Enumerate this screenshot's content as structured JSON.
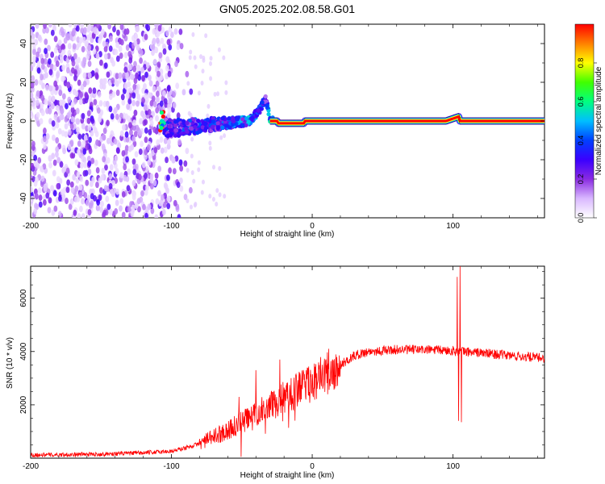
{
  "title": "GN05.2025.202.08.58.G01",
  "chart_data": [
    {
      "type": "heatmap",
      "name": "spectrogram",
      "xlabel": "Height of straight line (km)",
      "ylabel": "Frequency (Hz)",
      "xlim": [
        -200,
        165
      ],
      "ylim": [
        -50,
        50
      ],
      "xticks": [
        -200,
        -100,
        0,
        100
      ],
      "yticks": [
        -40,
        -20,
        0,
        20,
        40
      ],
      "colorbar": {
        "label": "Normalized spectral amplitude",
        "range": [
          0,
          1
        ],
        "ticks": [
          0.0,
          0.2,
          0.4,
          0.6,
          0.8
        ],
        "colormap": [
          "#ffffff",
          "#d9b8ff",
          "#8a2be2",
          "#3a00ff",
          "#0040ff",
          "#00bfff",
          "#00ff80",
          "#40ff00",
          "#ffff00",
          "#ff8000",
          "#ff0000"
        ]
      },
      "ridge": {
        "description_values": [
          {
            "x": -105,
            "y": -4,
            "amp": 0.35
          },
          {
            "x": -90,
            "y": -3,
            "amp": 0.4
          },
          {
            "x": -75,
            "y": -2,
            "amp": 0.4
          },
          {
            "x": -60,
            "y": -1,
            "amp": 0.45
          },
          {
            "x": -45,
            "y": 0,
            "amp": 0.5
          },
          {
            "x": -38,
            "y": 5,
            "amp": 0.45
          },
          {
            "x": -33,
            "y": 12,
            "amp": 0.3
          },
          {
            "x": -30,
            "y": 1,
            "amp": 0.75
          },
          {
            "x": -20,
            "y": 0,
            "amp": 0.9
          },
          {
            "x": -10,
            "y": -1,
            "amp": 0.95
          },
          {
            "x": 0,
            "y": 0,
            "amp": 1.0
          },
          {
            "x": 50,
            "y": 0,
            "amp": 1.0
          },
          {
            "x": 100,
            "y": 0,
            "amp": 1.0
          },
          {
            "x": 165,
            "y": 0,
            "amp": 1.0
          }
        ]
      }
    },
    {
      "type": "line",
      "name": "snr",
      "xlabel": "Height of straight line (km)",
      "ylabel": "SNR (10 * v/v)",
      "xlim": [
        -200,
        165
      ],
      "ylim": [
        0,
        7200
      ],
      "xticks": [
        -200,
        -100,
        0,
        100
      ],
      "yticks": [
        2000,
        4000,
        6000
      ],
      "color": "#ff0000",
      "envelope": [
        {
          "x": -200,
          "y": 120
        },
        {
          "x": -150,
          "y": 150
        },
        {
          "x": -120,
          "y": 200
        },
        {
          "x": -100,
          "y": 260
        },
        {
          "x": -90,
          "y": 380
        },
        {
          "x": -80,
          "y": 550
        },
        {
          "x": -70,
          "y": 800
        },
        {
          "x": -60,
          "y": 1050
        },
        {
          "x": -50,
          "y": 1350
        },
        {
          "x": -40,
          "y": 1650
        },
        {
          "x": -30,
          "y": 1950
        },
        {
          "x": -20,
          "y": 2250
        },
        {
          "x": -10,
          "y": 2550
        },
        {
          "x": 0,
          "y": 2850
        },
        {
          "x": 10,
          "y": 3150
        },
        {
          "x": 20,
          "y": 3500
        },
        {
          "x": 30,
          "y": 3850
        },
        {
          "x": 40,
          "y": 4000
        },
        {
          "x": 60,
          "y": 4070
        },
        {
          "x": 80,
          "y": 4070
        },
        {
          "x": 100,
          "y": 4030
        },
        {
          "x": 120,
          "y": 3950
        },
        {
          "x": 140,
          "y": 3850
        },
        {
          "x": 165,
          "y": 3750
        }
      ],
      "spikes": [
        {
          "x": -40,
          "y": 3300
        },
        {
          "x": -52,
          "y": 2300
        },
        {
          "x": -23,
          "y": 3700
        },
        {
          "x": -15,
          "y": 3000
        },
        {
          "x": 103,
          "y": 6800
        },
        {
          "x": 104,
          "y": 1400
        },
        {
          "x": 105,
          "y": 7200
        },
        {
          "x": 106,
          "y": 1350
        }
      ]
    }
  ]
}
